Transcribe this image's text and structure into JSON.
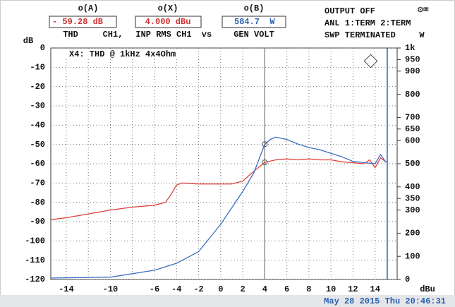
{
  "header": {
    "readout_labels": [
      "o(A)",
      "o(X)",
      "o(B)"
    ],
    "readouts": [
      "- 59.28 dB",
      "4.000 dBu",
      "584.7  W"
    ],
    "func": [
      "THD",
      "CH1,",
      "INP RMS CH1",
      "vs",
      "GEN VOLT"
    ],
    "status": [
      "OUTPUT OFF",
      "ANL 1:TERM 2:TERM",
      "SWP TERMINATED"
    ]
  },
  "footer": "May 28 2015 Thu 20:46:31",
  "chart_data": {
    "type": "line",
    "ylabel": "dB",
    "y2label": "W",
    "xlabel": "dBu",
    "annotation": "X4: THD @ 1kHz 4x4Ohm",
    "xlim": [
      -15.4,
      16
    ],
    "ylim": [
      -120,
      0
    ],
    "y2lim": [
      0,
      1000
    ],
    "xticks": [
      -14,
      -10,
      -6,
      -4,
      -2,
      0,
      2,
      4,
      6,
      8,
      10,
      12,
      14
    ],
    "xgrid": [
      -14,
      -12,
      -10,
      -8,
      -6,
      -4,
      -2,
      0,
      2,
      4,
      6,
      8,
      10,
      12,
      14
    ],
    "yticks": [
      -120,
      -110,
      -100,
      -90,
      -80,
      -70,
      -60,
      -50,
      -40,
      -30,
      -20,
      -10,
      0
    ],
    "y2ticks": [
      0,
      100,
      200,
      300,
      350,
      400,
      500,
      600,
      650,
      700,
      800,
      900,
      950,
      {
        "value": 1000,
        "label": "1k"
      }
    ],
    "grid": true,
    "cursor_x": 4,
    "limit_x": 15.1,
    "series": [
      {
        "color": "#e0403a",
        "axis": "y",
        "x": [
          -15.4,
          -14,
          -12,
          -10,
          -8,
          -6,
          -5,
          -4.5,
          -4,
          -3.5,
          -2,
          0,
          1,
          2,
          3,
          4,
          5,
          6,
          7,
          8,
          9,
          10,
          11,
          12,
          13,
          13.5,
          14,
          14.5,
          15
        ],
        "values": [
          -89,
          -88,
          -86,
          -84,
          -82.5,
          -81.5,
          -80,
          -76,
          -71,
          -70,
          -70.5,
          -70.5,
          -70.5,
          -69,
          -64,
          -59.28,
          -58,
          -57.5,
          -58,
          -57.5,
          -58,
          -58,
          -59,
          -59.5,
          -60,
          -58,
          -62,
          -57,
          -59
        ]
      },
      {
        "color": "#3a6fc0",
        "axis": "y2",
        "x": [
          -15.4,
          -10,
          -6,
          -4,
          -2,
          0,
          2,
          3,
          4,
          4.5,
          5,
          6,
          7,
          8,
          9,
          10,
          11,
          12,
          13,
          14,
          14.5,
          15
        ],
        "values": [
          6,
          10,
          40,
          70,
          120,
          238,
          380,
          460,
          584.7,
          605,
          615,
          605,
          585,
          570,
          560,
          545,
          530,
          510,
          505,
          500,
          540,
          505
        ]
      }
    ]
  }
}
